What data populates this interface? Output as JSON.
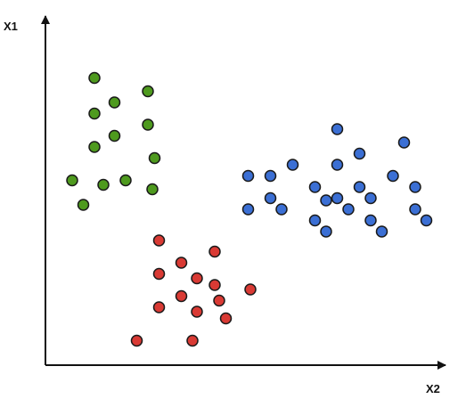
{
  "chart_data": {
    "type": "scatter",
    "xlabel": "X2",
    "ylabel": "X1",
    "xlim": [
      0,
      18
    ],
    "ylim": [
      0,
      16
    ],
    "grid": false,
    "legend": "none",
    "series": [
      {
        "color": "#4e9a1e",
        "points": [
          [
            2.2,
            12.9
          ],
          [
            3.1,
            11.8
          ],
          [
            4.6,
            12.3
          ],
          [
            2.2,
            11.3
          ],
          [
            3.1,
            10.3
          ],
          [
            4.6,
            10.8
          ],
          [
            2.2,
            9.8
          ],
          [
            4.9,
            9.3
          ],
          [
            1.2,
            8.3
          ],
          [
            2.6,
            8.1
          ],
          [
            3.6,
            8.3
          ],
          [
            4.8,
            7.9
          ],
          [
            1.7,
            7.2
          ]
        ]
      },
      {
        "color": "#d93a34",
        "points": [
          [
            5.1,
            5.6
          ],
          [
            7.6,
            5.1
          ],
          [
            6.1,
            4.6
          ],
          [
            5.1,
            4.1
          ],
          [
            6.8,
            3.9
          ],
          [
            7.6,
            3.6
          ],
          [
            6.1,
            3.1
          ],
          [
            7.8,
            2.9
          ],
          [
            9.2,
            3.4
          ],
          [
            5.1,
            2.6
          ],
          [
            6.8,
            2.4
          ],
          [
            8.1,
            2.1
          ],
          [
            4.1,
            1.1
          ],
          [
            6.6,
            1.1
          ]
        ]
      },
      {
        "color": "#3b6fd4",
        "points": [
          [
            13.1,
            10.6
          ],
          [
            16.1,
            10.0
          ],
          [
            14.1,
            9.5
          ],
          [
            13.1,
            9.0
          ],
          [
            10.1,
            8.5
          ],
          [
            11.1,
            9.0
          ],
          [
            15.6,
            8.5
          ],
          [
            9.1,
            8.5
          ],
          [
            12.1,
            8.0
          ],
          [
            14.1,
            8.0
          ],
          [
            16.6,
            8.0
          ],
          [
            10.1,
            7.5
          ],
          [
            13.1,
            7.5
          ],
          [
            12.6,
            7.4
          ],
          [
            14.6,
            7.5
          ],
          [
            9.1,
            7.0
          ],
          [
            10.6,
            7.0
          ],
          [
            13.6,
            7.0
          ],
          [
            16.6,
            7.0
          ],
          [
            12.1,
            6.5
          ],
          [
            14.6,
            6.5
          ],
          [
            17.1,
            6.5
          ],
          [
            12.6,
            6.0
          ],
          [
            15.1,
            6.0
          ]
        ]
      }
    ]
  }
}
